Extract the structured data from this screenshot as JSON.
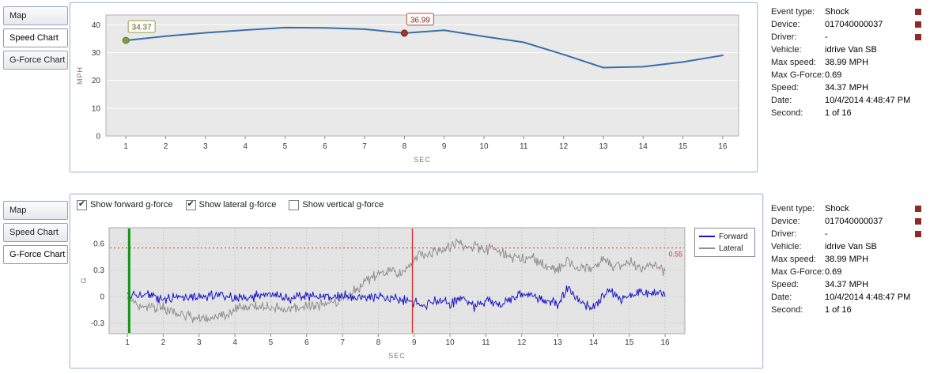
{
  "top_tabs": [
    {
      "label": "Map",
      "selected": false
    },
    {
      "label": "Speed Chart",
      "selected": true
    },
    {
      "label": "G-Force Chart",
      "selected": false
    }
  ],
  "bottom_tabs": [
    {
      "label": "Map",
      "selected": false
    },
    {
      "label": "Speed Chart",
      "selected": false
    },
    {
      "label": "G-Force Chart",
      "selected": true
    }
  ],
  "gforce_checkboxes": [
    {
      "label": "Show forward g-force",
      "checked": true
    },
    {
      "label": "Show lateral g-force",
      "checked": true
    },
    {
      "label": "Show vertical g-force",
      "checked": false
    }
  ],
  "event_info": {
    "rows": [
      {
        "label": "Event type:",
        "value": "Shock"
      },
      {
        "label": "Device:",
        "value": "017040000037"
      },
      {
        "label": "Driver:",
        "value": "-"
      },
      {
        "label": "Vehicle:",
        "value": "idrive Van SB"
      },
      {
        "label": "Max speed:",
        "value": "38.99 MPH"
      },
      {
        "label": "Max G-Force:",
        "value": "0.69"
      },
      {
        "label": "Speed:",
        "value": "34.37 MPH"
      },
      {
        "label": "Date:",
        "value": "10/4/2014 4:48:47 PM"
      },
      {
        "label": "Second:",
        "value": "1 of 16"
      }
    ]
  },
  "chart_data": [
    {
      "type": "line",
      "name": "speed-over-time",
      "title": "",
      "xlabel": "SEC",
      "ylabel": "MPH",
      "x": [
        1,
        2,
        3,
        4,
        5,
        6,
        7,
        8,
        9,
        10,
        11,
        12,
        13,
        14,
        15,
        16
      ],
      "values": [
        34.37,
        35.9,
        37.1,
        38.1,
        38.99,
        38.9,
        38.4,
        36.99,
        38.0,
        35.8,
        33.7,
        29.3,
        24.6,
        24.9,
        26.6,
        29.0
      ],
      "xlim": [
        0.5,
        16.4
      ],
      "ylim": [
        0,
        43.5
      ],
      "yticks": [
        0,
        10,
        20,
        30,
        40
      ],
      "grid": "horizontal",
      "line_color": "#3a6fa8",
      "plot_bg": "#e9e9e9",
      "annotations": [
        {
          "x": 1,
          "y": 34.37,
          "label": "34.37",
          "marker_fill": "#7fa03c",
          "marker_stroke": "#5e7d22",
          "box_color": "#93a04e",
          "text_color": "#50601c"
        },
        {
          "x": 8,
          "y": 36.99,
          "label": "36.99",
          "marker_fill": "#a8322c",
          "marker_stroke": "#7c1f1c",
          "box_color": "#b05048",
          "text_color": "#8c2420"
        }
      ]
    },
    {
      "type": "line",
      "name": "gforce-over-time",
      "title": "",
      "xlabel": "SEC",
      "ylabel": "G",
      "xlim": [
        0.49,
        16.55
      ],
      "ylim": [
        -0.42,
        0.78
      ],
      "xticks": [
        1,
        2,
        3,
        4,
        5,
        6,
        7,
        8,
        9,
        10,
        11,
        12,
        13,
        14,
        15,
        16
      ],
      "yticks": [
        -0.3,
        0,
        0.3,
        0.6
      ],
      "grid": "both-dotted",
      "plot_bg": "#e4e4e4",
      "legend_position": "right",
      "series": [
        {
          "name": "Forward",
          "color": "#1616c8",
          "noise": 0.035,
          "trend": [
            [
              1,
              0
            ],
            [
              1.5,
              0.02
            ],
            [
              2,
              -0.02
            ],
            [
              2.5,
              0.01
            ],
            [
              3,
              -0.01
            ],
            [
              3.5,
              0.02
            ],
            [
              4,
              -0.02
            ],
            [
              4.5,
              0
            ],
            [
              5,
              0.02
            ],
            [
              5.5,
              -0.02
            ],
            [
              6,
              0.01
            ],
            [
              6.5,
              -0.01
            ],
            [
              7,
              0.01
            ],
            [
              7.5,
              -0.02
            ],
            [
              8,
              0
            ],
            [
              8.5,
              -0.03
            ],
            [
              9,
              -0.06
            ],
            [
              9.3,
              -0.1
            ],
            [
              9.6,
              -0.04
            ],
            [
              10,
              -0.08
            ],
            [
              10.4,
              -0.03
            ],
            [
              10.7,
              -0.12
            ],
            [
              11,
              -0.04
            ],
            [
              11.4,
              -0.08
            ],
            [
              11.8,
              0
            ],
            [
              12.2,
              0.04
            ],
            [
              12.6,
              -0.04
            ],
            [
              13,
              -0.08
            ],
            [
              13.3,
              0.1
            ],
            [
              13.6,
              -0.05
            ],
            [
              14,
              -0.14
            ],
            [
              14.4,
              0.08
            ],
            [
              14.8,
              -0.04
            ],
            [
              15.2,
              0.05
            ],
            [
              15.6,
              0.02
            ],
            [
              16,
              0.06
            ]
          ]
        },
        {
          "name": "Lateral",
          "color": "#8f8f8f",
          "noise": 0.04,
          "trend": [
            [
              1,
              -0.04
            ],
            [
              1.5,
              -0.1
            ],
            [
              2,
              -0.12
            ],
            [
              2.5,
              -0.2
            ],
            [
              3,
              -0.25
            ],
            [
              3.3,
              -0.26
            ],
            [
              3.7,
              -0.2
            ],
            [
              4,
              -0.14
            ],
            [
              4.5,
              -0.11
            ],
            [
              5,
              -0.12
            ],
            [
              5.5,
              -0.14
            ],
            [
              6,
              -0.12
            ],
            [
              6.5,
              -0.08
            ],
            [
              7,
              -0.03
            ],
            [
              7.3,
              0.05
            ],
            [
              7.6,
              0.15
            ],
            [
              8,
              0.26
            ],
            [
              8.3,
              0.29
            ],
            [
              8.6,
              0.28
            ],
            [
              8.9,
              0.33
            ],
            [
              9.1,
              0.5
            ],
            [
              9.4,
              0.48
            ],
            [
              9.7,
              0.52
            ],
            [
              10,
              0.55
            ],
            [
              10.2,
              0.62
            ],
            [
              10.4,
              0.55
            ],
            [
              10.7,
              0.58
            ],
            [
              11,
              0.52
            ],
            [
              11.3,
              0.55
            ],
            [
              11.6,
              0.45
            ],
            [
              12,
              0.42
            ],
            [
              12.3,
              0.44
            ],
            [
              12.6,
              0.36
            ],
            [
              13,
              0.31
            ],
            [
              13.3,
              0.38
            ],
            [
              13.6,
              0.3
            ],
            [
              14,
              0.33
            ],
            [
              14.3,
              0.44
            ],
            [
              14.6,
              0.34
            ],
            [
              15,
              0.39
            ],
            [
              15.3,
              0.33
            ],
            [
              15.6,
              0.36
            ],
            [
              16,
              0.3
            ]
          ]
        }
      ],
      "vlines": [
        {
          "x": 1.05,
          "color": "#149414",
          "width": 3
        },
        {
          "x": 8.95,
          "color": "#d03030",
          "width": 1.3
        }
      ],
      "hline": {
        "y": 0.55,
        "label": "0.55",
        "color": "#cc3a3a"
      }
    }
  ]
}
